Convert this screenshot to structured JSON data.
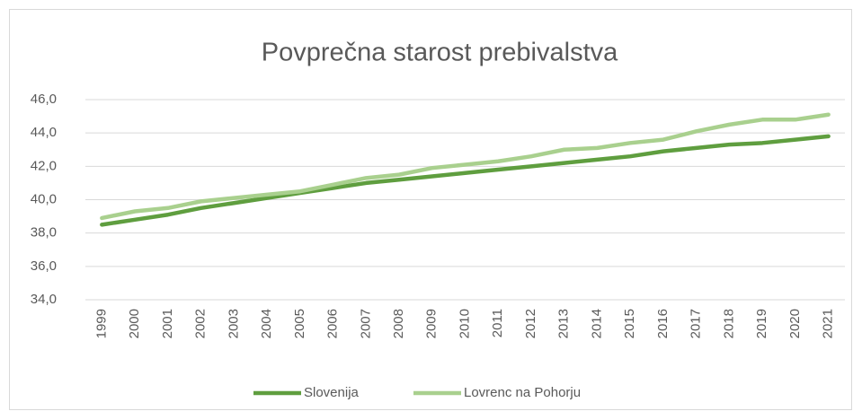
{
  "chart_data": {
    "type": "line",
    "title": "Povprečna starost prebivalstva",
    "categories": [
      "1999",
      "2000",
      "2001",
      "2002",
      "2003",
      "2004",
      "2005",
      "2006",
      "2007",
      "2008",
      "2009",
      "2010",
      "2011",
      "2012",
      "2013",
      "2014",
      "2015",
      "2016",
      "2017",
      "2018",
      "2019",
      "2020",
      "2021"
    ],
    "series": [
      {
        "name": "Slovenija",
        "color": "#5f9e3f",
        "values": [
          38.5,
          38.8,
          39.1,
          39.5,
          39.8,
          40.1,
          40.4,
          40.7,
          41.0,
          41.2,
          41.4,
          41.6,
          41.8,
          42.0,
          42.2,
          42.4,
          42.6,
          42.9,
          43.1,
          43.3,
          43.4,
          43.6,
          43.8
        ]
      },
      {
        "name": "Lovrenc na Pohorju",
        "color": "#a9d08e",
        "values": [
          38.9,
          39.3,
          39.5,
          39.9,
          40.1,
          40.3,
          40.5,
          40.9,
          41.3,
          41.5,
          41.9,
          42.1,
          42.3,
          42.6,
          43.0,
          43.1,
          43.4,
          43.6,
          44.1,
          44.5,
          44.8,
          44.8,
          45.1
        ]
      }
    ],
    "ylim": [
      34,
      46
    ],
    "yticks": [
      {
        "value": 34,
        "label": "34,0"
      },
      {
        "value": 36,
        "label": "36,0"
      },
      {
        "value": 38,
        "label": "38,0"
      },
      {
        "value": 40,
        "label": "40,0"
      },
      {
        "value": 42,
        "label": "42,0"
      },
      {
        "value": 44,
        "label": "44,0"
      },
      {
        "value": 46,
        "label": "46,0"
      }
    ],
    "grid": true,
    "legend": "bottom"
  }
}
